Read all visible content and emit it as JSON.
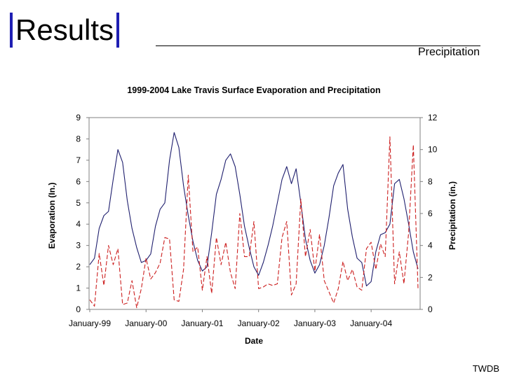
{
  "slide": {
    "title": "Results",
    "subtitle": "Precipitation",
    "footer": "TWDB",
    "accent_color": "#1f1fb3"
  },
  "chart_data": {
    "type": "line",
    "title": "1999-2004 Lake Travis Surface Evaporation and Precipitation",
    "xlabel": "Date",
    "ylabel_left": "Evaporation (In.)",
    "ylabel_right": "Precipitation (in.)",
    "ylim_left": [
      0,
      9
    ],
    "ylim_right": [
      0,
      12
    ],
    "yticks_left": [
      "0",
      "1",
      "2",
      "3",
      "4",
      "5",
      "6",
      "7",
      "8",
      "9"
    ],
    "yticks_right": [
      "0",
      "2",
      "4",
      "6",
      "8",
      "10",
      "12"
    ],
    "xticks": [
      "January-99",
      "January-00",
      "January-01",
      "January-02",
      "January-03",
      "January-04"
    ],
    "grid": false,
    "series": [
      {
        "axis": "left",
        "color": "#1f1f6e",
        "dash": "none",
        "values": [
          2.1,
          2.4,
          3.8,
          4.4,
          4.6,
          6.1,
          7.5,
          6.9,
          5.1,
          3.8,
          2.9,
          2.2,
          2.3,
          2.6,
          3.9,
          4.7,
          5.0,
          7.0,
          8.3,
          7.6,
          5.8,
          4.4,
          3.2,
          2.3,
          1.8,
          2.0,
          3.6,
          5.4,
          6.1,
          7.0,
          7.3,
          6.7,
          5.4,
          3.9,
          2.9,
          2.0,
          1.6,
          2.2,
          3.0,
          3.9,
          5.0,
          6.1,
          6.7,
          5.9,
          6.6,
          5.0,
          3.3,
          2.3,
          1.7,
          2.1,
          3.0,
          4.3,
          5.8,
          6.4,
          6.8,
          4.7,
          3.4,
          2.4,
          2.2,
          1.1,
          1.3,
          2.7,
          3.5,
          3.6,
          4.0,
          5.9,
          6.1,
          5.2,
          4.0,
          2.7,
          1.9
        ]
      },
      {
        "axis": "right",
        "color": "#cc1f1f",
        "dash": "6,3",
        "values": [
          0.6,
          0.2,
          3.5,
          1.5,
          4.0,
          2.8,
          3.8,
          0.3,
          0.4,
          1.8,
          0.1,
          1.3,
          3.2,
          1.9,
          2.3,
          2.9,
          4.5,
          4.4,
          0.6,
          0.5,
          2.5,
          8.4,
          3.6,
          3.9,
          1.2,
          3.3,
          1.0,
          4.5,
          2.8,
          4.2,
          2.3,
          1.3,
          6.0,
          3.3,
          3.3,
          5.5,
          1.3,
          1.4,
          1.6,
          1.5,
          1.6,
          4.5,
          5.5,
          0.9,
          1.6,
          6.9,
          3.3,
          5.0,
          2.4,
          4.7,
          1.8,
          1.1,
          0.4,
          1.3,
          3.0,
          1.8,
          2.5,
          1.4,
          1.2,
          3.8,
          4.2,
          2.5,
          4.1,
          3.3,
          10.8,
          1.6,
          3.6,
          1.6,
          4.8,
          10.3,
          1.3
        ]
      }
    ]
  }
}
